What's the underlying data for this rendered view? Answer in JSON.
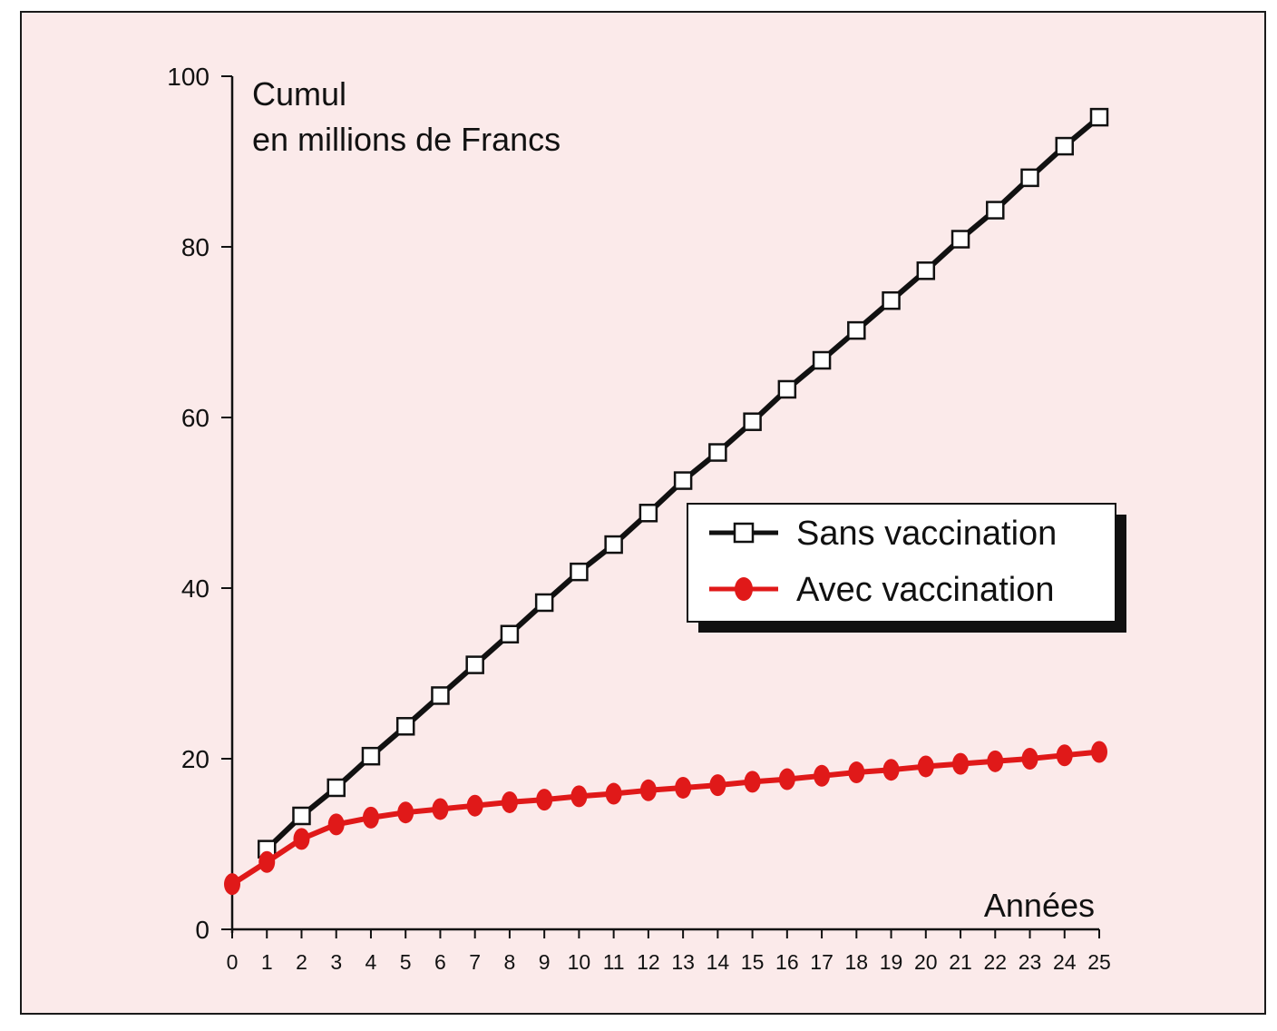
{
  "chart_data": {
    "type": "line",
    "ylabel_line1": "Cumul",
    "ylabel_line2": "en millions de Francs",
    "xlabel": "Années",
    "x": [
      0,
      1,
      2,
      3,
      4,
      5,
      6,
      7,
      8,
      9,
      10,
      11,
      12,
      13,
      14,
      15,
      16,
      17,
      18,
      19,
      20,
      21,
      22,
      23,
      24,
      25
    ],
    "xlim": [
      0,
      25
    ],
    "ylim": [
      0,
      100
    ],
    "yticks": [
      0,
      20,
      40,
      60,
      80,
      100
    ],
    "grid": false,
    "legend_position": "right-center",
    "series": [
      {
        "name": "Sans vaccination",
        "color": "#111111",
        "marker": "open-square",
        "x": [
          1,
          2,
          3,
          4,
          5,
          6,
          7,
          8,
          9,
          10,
          11,
          12,
          13,
          14,
          15,
          16,
          17,
          18,
          19,
          20,
          21,
          22,
          23,
          24,
          25
        ],
        "values": [
          9.4,
          13.3,
          16.6,
          20.3,
          23.8,
          27.4,
          31.0,
          34.6,
          38.3,
          41.9,
          45.1,
          48.8,
          52.6,
          55.9,
          59.5,
          63.3,
          66.7,
          70.2,
          73.7,
          77.2,
          80.9,
          84.3,
          88.1,
          91.8,
          95.2
        ]
      },
      {
        "name": "Avec vaccination",
        "color": "#e01919",
        "marker": "filled-circle",
        "x": [
          0,
          1,
          2,
          3,
          4,
          5,
          6,
          7,
          8,
          9,
          10,
          11,
          12,
          13,
          14,
          15,
          16,
          17,
          18,
          19,
          20,
          21,
          22,
          23,
          24,
          25
        ],
        "values": [
          5.3,
          7.9,
          10.6,
          12.3,
          13.1,
          13.7,
          14.1,
          14.5,
          14.9,
          15.2,
          15.6,
          15.9,
          16.3,
          16.6,
          16.9,
          17.3,
          17.6,
          18.0,
          18.4,
          18.7,
          19.1,
          19.4,
          19.7,
          20.0,
          20.4,
          20.8
        ]
      }
    ]
  }
}
